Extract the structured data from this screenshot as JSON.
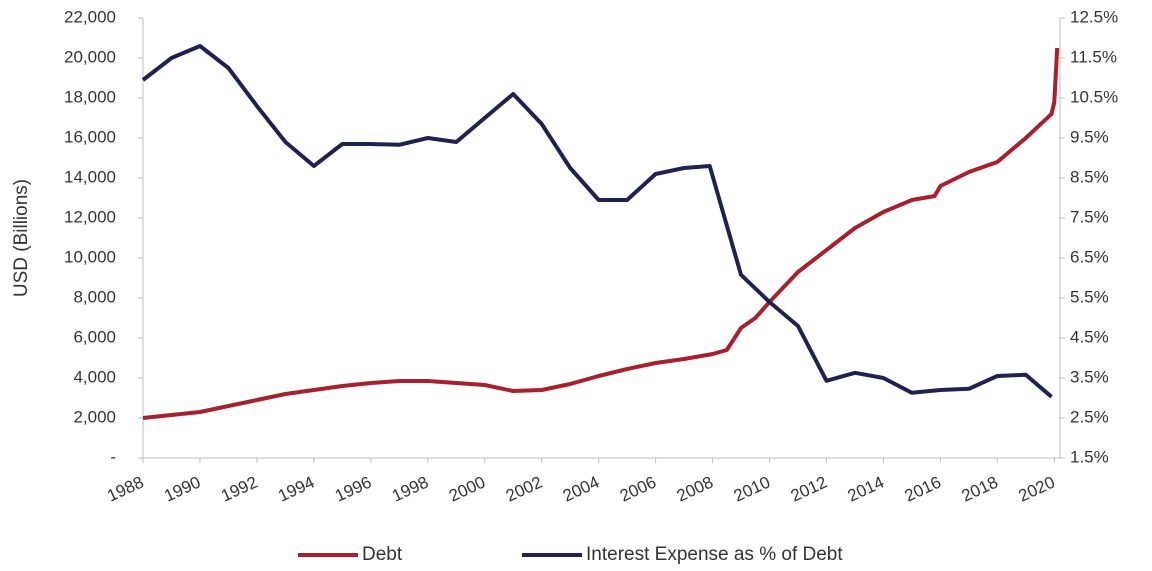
{
  "chart_data": {
    "type": "line",
    "ylabel": "USD (Billions)",
    "xlim": [
      1988,
      2020.2
    ],
    "xticks": [
      1988,
      1990,
      1992,
      1994,
      1996,
      1998,
      2000,
      2002,
      2004,
      2006,
      2008,
      2010,
      2012,
      2014,
      2016,
      2018,
      2020
    ],
    "ylim": [
      0,
      22000
    ],
    "yticks": [
      {
        "value": 0,
        "label": "-"
      },
      {
        "value": 2000,
        "label": "2,000"
      },
      {
        "value": 4000,
        "label": "4,000"
      },
      {
        "value": 6000,
        "label": "6,000"
      },
      {
        "value": 8000,
        "label": "8,000"
      },
      {
        "value": 10000,
        "label": "10,000"
      },
      {
        "value": 12000,
        "label": "12,000"
      },
      {
        "value": 14000,
        "label": "14,000"
      },
      {
        "value": 16000,
        "label": "16,000"
      },
      {
        "value": 18000,
        "label": "18,000"
      },
      {
        "value": 20000,
        "label": "20,000"
      },
      {
        "value": 22000,
        "label": "22,000"
      }
    ],
    "y2lim": [
      1.5,
      12.5
    ],
    "y2ticks": [
      {
        "value": 1.5,
        "label": "1.5%"
      },
      {
        "value": 2.5,
        "label": "2.5%"
      },
      {
        "value": 3.5,
        "label": "3.5%"
      },
      {
        "value": 4.5,
        "label": "4.5%"
      },
      {
        "value": 5.5,
        "label": "5.5%"
      },
      {
        "value": 6.5,
        "label": "6.5%"
      },
      {
        "value": 7.5,
        "label": "7.5%"
      },
      {
        "value": 8.5,
        "label": "8.5%"
      },
      {
        "value": 9.5,
        "label": "9.5%"
      },
      {
        "value": 10.5,
        "label": "10.5%"
      },
      {
        "value": 11.5,
        "label": "11.5%"
      },
      {
        "value": 12.5,
        "label": "12.5%"
      }
    ],
    "legend": "bottom",
    "series": [
      {
        "name": "Debt",
        "color": "#a81f2d",
        "x": [
          1988,
          1989,
          1990,
          1991,
          1992,
          1993,
          1994,
          1995,
          1996,
          1997,
          1998,
          1999,
          2000,
          2001,
          2002,
          2003,
          2004,
          2005,
          2006,
          2007,
          2008,
          2008.5,
          2009,
          2009.5,
          2010,
          2011,
          2012,
          2013,
          2014,
          2015,
          2015.8,
          2016,
          2017,
          2018,
          2019,
          2019.9,
          2020,
          2020.1
        ],
        "values": [
          2000,
          2150,
          2300,
          2600,
          2900,
          3200,
          3400,
          3600,
          3750,
          3850,
          3850,
          3750,
          3650,
          3350,
          3400,
          3700,
          4100,
          4450,
          4750,
          4950,
          5200,
          5400,
          6500,
          7000,
          7800,
          9300,
          10400,
          11500,
          12300,
          12900,
          13100,
          13600,
          14300,
          14800,
          16000,
          17200,
          17800,
          20500
        ]
      },
      {
        "name": "Interest Expense as % of Debt",
        "color": "#1f2150",
        "axis": "y2",
        "x": [
          1988,
          1989,
          1990,
          1991,
          1992,
          1993,
          1994,
          1995,
          1996,
          1997,
          1998,
          1999,
          2000,
          2001,
          2002,
          2003,
          2004,
          2005,
          2006,
          2007,
          2007.9,
          2009,
          2010,
          2011,
          2012,
          2013,
          2014,
          2015,
          2016,
          2017,
          2018,
          2019,
          2019.9
        ],
        "values": [
          10.95,
          11.5,
          11.8,
          11.25,
          10.3,
          9.4,
          8.8,
          9.35,
          9.35,
          9.33,
          9.5,
          9.4,
          10.0,
          10.6,
          9.85,
          8.75,
          7.95,
          7.95,
          8.6,
          8.75,
          8.8,
          6.08,
          5.4,
          4.8,
          3.43,
          3.63,
          3.5,
          3.13,
          3.2,
          3.23,
          3.55,
          3.58,
          3.03
        ]
      }
    ]
  }
}
